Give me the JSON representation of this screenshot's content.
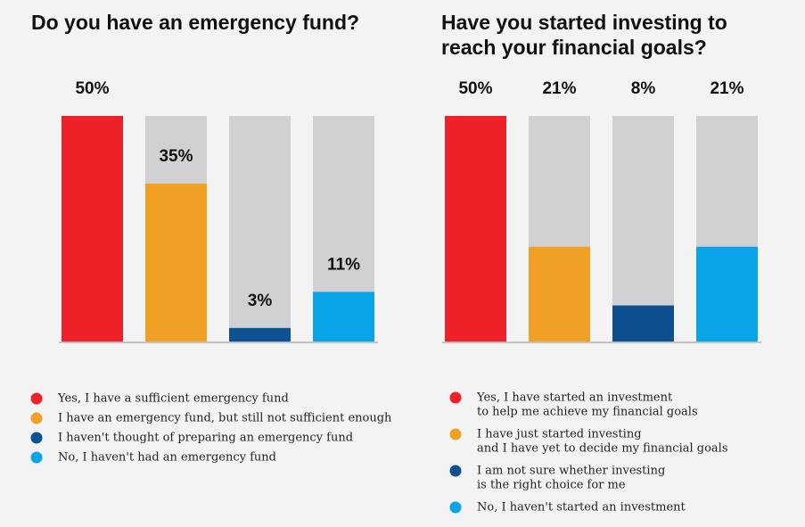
{
  "chart_data": [
    {
      "type": "bar",
      "title": [
        "Do you have an emergency fund?"
      ],
      "categories": [
        [
          "Yes, I have a sufficient emergency fund"
        ],
        [
          "I have an emergency fund, but still not sufficient enough"
        ],
        [
          "I haven't thought of preparing an emergency fund"
        ],
        [
          "No, I haven't had an emergency fund"
        ]
      ],
      "values": [
        50,
        35,
        3,
        11
      ],
      "value_labels": [
        "50%",
        "35%",
        "3%",
        "11%"
      ],
      "colors": [
        "#ee2028",
        "#f0a025",
        "#0b5394",
        "#0aa4e8"
      ],
      "ylim": [
        0,
        50
      ],
      "value_label_position": "above-bar"
    },
    {
      "type": "bar",
      "title": [
        "Have you started investing to",
        "reach your financial goals?"
      ],
      "categories": [
        [
          "Yes, I have started an investment",
          "to help me achieve my financial goals"
        ],
        [
          "I have just started investing",
          "and I have yet to decide my financial goals"
        ],
        [
          "I am not sure whether investing",
          "is the right choice for me"
        ],
        [
          "No, I haven't started an investment"
        ]
      ],
      "values": [
        50,
        21,
        8,
        21
      ],
      "value_labels": [
        "50%",
        "21%",
        "8%",
        "21%"
      ],
      "colors": [
        "#ee2028",
        "#f0a025",
        "#0d4f8f",
        "#0aa4e8"
      ],
      "ylim": [
        0,
        50
      ],
      "value_label_position": "top"
    }
  ]
}
